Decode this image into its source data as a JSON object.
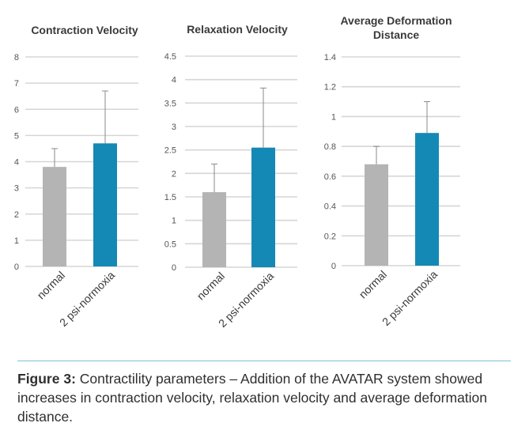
{
  "chart_data": [
    {
      "type": "bar",
      "title": "Contraction Velocity",
      "categories": [
        "normal",
        "2 psi-normoxia"
      ],
      "values": [
        3.8,
        4.7
      ],
      "error_upper": [
        4.5,
        6.7
      ],
      "colors": [
        "#b4b4b4",
        "#1589b5"
      ],
      "ylim": [
        0,
        8
      ],
      "yticks": [
        0,
        1,
        2,
        3,
        4,
        5,
        6,
        7,
        8
      ],
      "ytick_labels": [
        "0",
        "1",
        "2",
        "3",
        "4",
        "5",
        "6",
        "7",
        "8"
      ],
      "grid": true
    },
    {
      "type": "bar",
      "title": "Relaxation Velocity",
      "categories": [
        "normal",
        "2 psi-normoxia"
      ],
      "values": [
        1.6,
        2.55
      ],
      "error_upper": [
        2.2,
        3.82
      ],
      "colors": [
        "#b4b4b4",
        "#1589b5"
      ],
      "ylim": [
        0,
        4.5
      ],
      "yticks": [
        0,
        0.5,
        1,
        1.5,
        2,
        2.5,
        3,
        3.5,
        4,
        4.5
      ],
      "ytick_labels": [
        "0",
        "0.5",
        "1",
        "1.5",
        "2",
        "2.5",
        "3",
        "3.5",
        "4",
        "4.5"
      ],
      "grid": true
    },
    {
      "type": "bar",
      "title": "Average Deformation Distance",
      "title_lines": [
        "Average Deformation",
        "Distance"
      ],
      "categories": [
        "normal",
        "2 psi-normoxia"
      ],
      "values": [
        0.68,
        0.89
      ],
      "error_upper": [
        0.8,
        1.1
      ],
      "colors": [
        "#b4b4b4",
        "#1589b5"
      ],
      "ylim": [
        0,
        1.4
      ],
      "yticks": [
        0,
        0.2,
        0.4,
        0.6,
        0.8,
        1,
        1.2,
        1.4
      ],
      "ytick_labels": [
        "0",
        "0.2",
        "0.4",
        "0.6",
        "0.8",
        "1",
        "1.2",
        "1.4"
      ],
      "grid": true
    }
  ],
  "caption": {
    "label": "Figure 3:",
    "text": "Contractility parameters – Addition of the AVATAR system showed increases in contraction velocity, relaxation velocity and average deformation distance."
  }
}
